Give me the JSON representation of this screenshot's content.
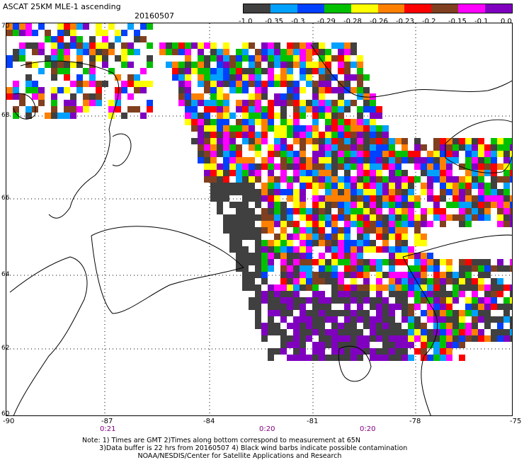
{
  "header": {
    "title": "ASCAT 25KM MLE-1 ascending",
    "date": "20160507"
  },
  "colorbar": {
    "colors": [
      "#404040",
      "#00a0ff",
      "#0040ff",
      "#00c000",
      "#ffff00",
      "#ff8000",
      "#ff0000",
      "#804020",
      "#ff00ff",
      "#8000c0"
    ],
    "ticks": [
      "-1.0",
      "-0.35",
      "-0.3",
      "-0.29",
      "-0.28",
      "-0.26",
      "-0.23",
      "-0.2",
      "-0.15",
      "-0.1",
      "0.0"
    ]
  },
  "map": {
    "lat_labels": [
      "70",
      "68",
      "66",
      "64",
      "62",
      "60"
    ],
    "lon_labels": [
      "-90",
      "-87",
      "-84",
      "-81",
      "-78",
      "-75"
    ],
    "time_labels": [
      "0:21",
      "0:20",
      "0:20"
    ]
  },
  "footer": {
    "note_line1": "Note: 1) Times are GMT 2)Times along bottom correspond to measurement at 65N",
    "note_line2": "3)Data buffer is 22 hrs from 20160507 4) Black wind barbs indicate possible contamination",
    "note_line3": "NOAA/NESDIS/Center for Satellite Applications and Research"
  }
}
